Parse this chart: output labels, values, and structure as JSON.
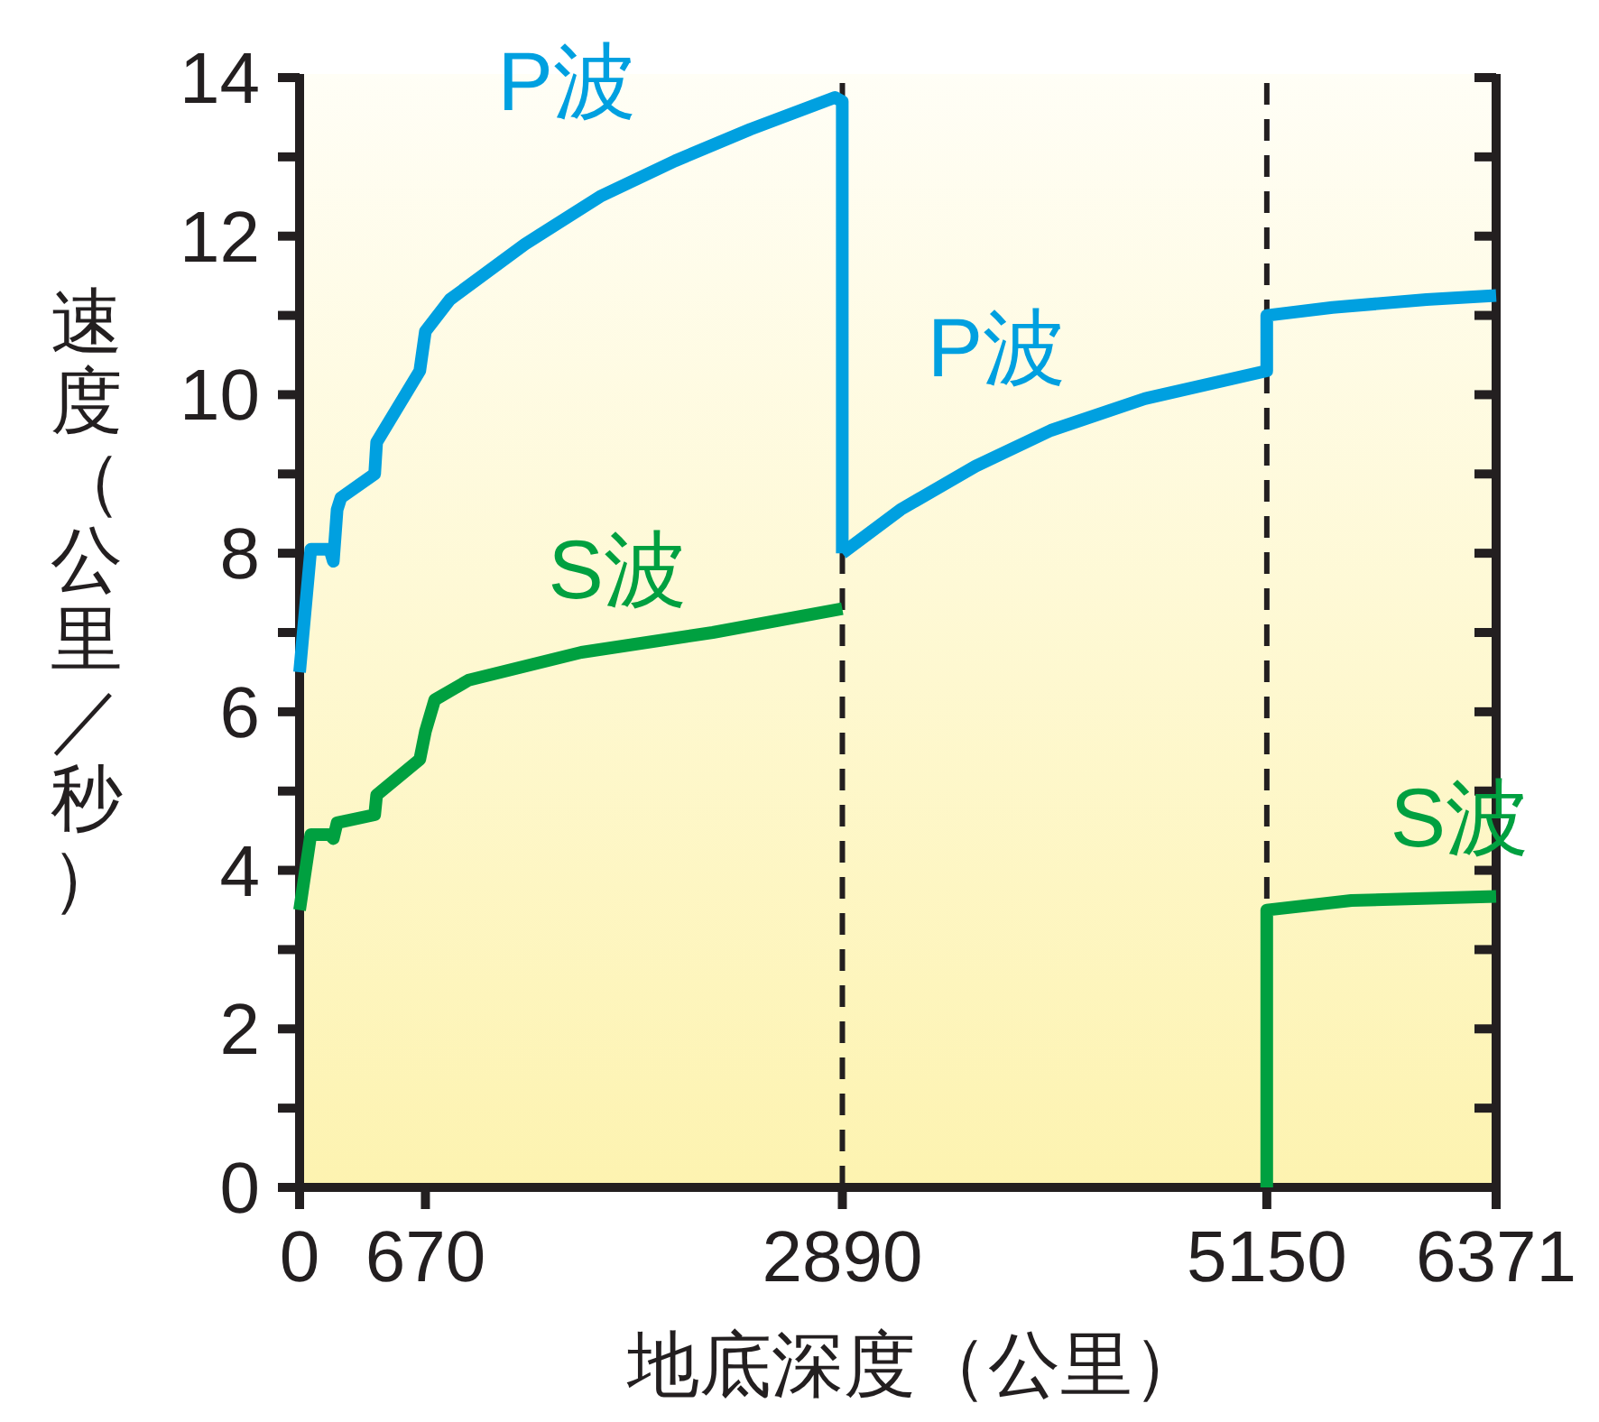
{
  "chart_data": {
    "type": "line",
    "xlabel": "地底深度（公里）",
    "ylabel": "速度（公里／秒）",
    "xlim": [
      0,
      6371
    ],
    "ylim": [
      0,
      14
    ],
    "xticks": [
      0,
      670,
      2890,
      5150,
      6371
    ],
    "yticks": [
      0,
      {
        "value": 1,
        "label": null
      },
      2,
      {
        "value": 3,
        "label": null
      },
      4,
      {
        "value": 5,
        "label": null
      },
      6,
      {
        "value": 7,
        "label": null
      },
      8,
      {
        "value": 9,
        "label": null
      },
      10,
      {
        "value": 11,
        "label": null
      },
      12,
      {
        "value": 13,
        "label": null
      },
      14
    ],
    "marker": "none",
    "line_style": "solid",
    "ref_lines": [
      {
        "axis": "x",
        "value": 2890,
        "color": "#231f20",
        "line_style": "dashed"
      },
      {
        "axis": "x",
        "value": 5150,
        "color": "#231f20",
        "line_style": "dashed"
      }
    ],
    "series": [
      {
        "name": "P波",
        "color": "#00a0e0",
        "x": [
          0,
          60,
          160,
          180,
          200,
          220,
          400,
          410,
          640,
          670,
          800,
          1200,
          1600,
          2000,
          2400,
          2850,
          2890,
          2890
        ],
        "values": [
          6.5,
          8.05,
          8.05,
          7.9,
          8.55,
          8.7,
          9.0,
          9.4,
          10.3,
          10.8,
          11.2,
          11.9,
          12.5,
          12.95,
          13.35,
          13.75,
          13.7,
          8.0
        ]
      },
      {
        "name": "P波",
        "color": "#00a0e0",
        "x": [
          2890,
          3200,
          3600,
          4000,
          4500,
          5150,
          5150,
          5500,
          6000,
          6371
        ],
        "values": [
          8.0,
          8.55,
          9.1,
          9.55,
          9.95,
          10.3,
          11.0,
          11.1,
          11.2,
          11.25
        ]
      },
      {
        "name": "S波",
        "color": "#00a040",
        "x": [
          0,
          60,
          160,
          180,
          200,
          400,
          410,
          640,
          670,
          720,
          900,
          1500,
          2200,
          2890
        ],
        "values": [
          3.5,
          4.45,
          4.45,
          4.4,
          4.6,
          4.7,
          4.95,
          5.4,
          5.75,
          6.15,
          6.4,
          6.75,
          7.0,
          7.3
        ]
      },
      {
        "name": "S波",
        "color": "#00a040",
        "x": [
          5150,
          5150,
          5600,
          6371
        ],
        "values": [
          0,
          3.5,
          3.62,
          3.67
        ]
      }
    ]
  }
}
